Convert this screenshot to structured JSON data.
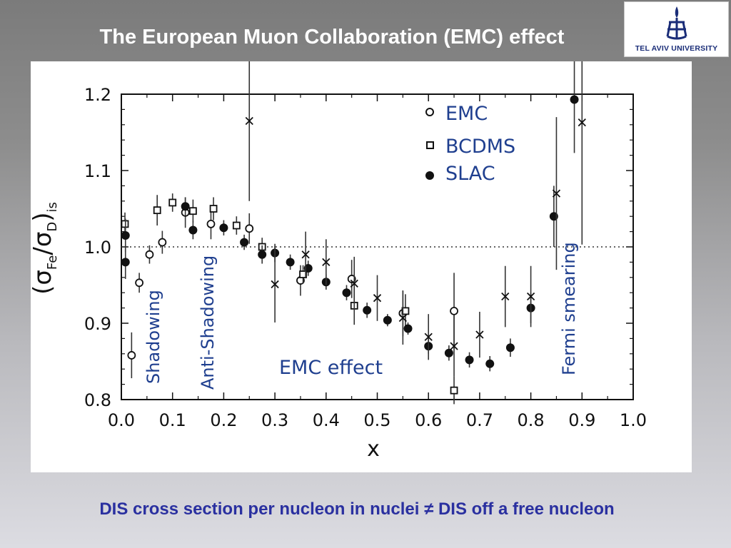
{
  "slide": {
    "title": "The European  Muon Collaboration (EMC) effect",
    "footer": "DIS cross section per nucleon in nuclei  ≠ DIS off a free nucleon",
    "logo_text": "TEL AVIV UNIVERSITY"
  },
  "colors": {
    "title": "#ffffff",
    "footer": "#2a30a0",
    "region_label": "#1f3f8f",
    "legend_text": "#1f3f8f",
    "logo": "#1a2d78"
  },
  "chart_data": {
    "type": "scatter",
    "xlabel": "x",
    "ylabel_base": "(σ",
    "ylabel_sub1": "Fe",
    "ylabel_mid": "/σ",
    "ylabel_sub2": "D",
    "ylabel_close": ")",
    "ylabel_sub3": "is",
    "xlim": [
      0.0,
      1.0
    ],
    "ylim": [
      0.8,
      1.2
    ],
    "x_ticks": [
      "0.0",
      "0.1",
      "0.2",
      "0.3",
      "0.4",
      "0.5",
      "0.6",
      "0.7",
      "0.8",
      "0.9",
      "1.0"
    ],
    "y_ticks": [
      "0.8",
      "0.9",
      "1.0",
      "1.1",
      "1.2"
    ],
    "reference_line": 1.0,
    "legend_position": "top-right",
    "region_labels": [
      "Shadowing",
      "Anti-Shadowing",
      "EMC effect",
      "Fermi smearing"
    ],
    "series": [
      {
        "name": "EMC",
        "marker": "open-circle",
        "points": [
          {
            "x": 0.02,
            "y": 0.858,
            "err": 0.03
          },
          {
            "x": 0.035,
            "y": 0.953,
            "err": 0.013
          },
          {
            "x": 0.055,
            "y": 0.99,
            "err": 0.012
          },
          {
            "x": 0.08,
            "y": 1.006,
            "err": 0.015
          },
          {
            "x": 0.125,
            "y": 1.045,
            "err": 0.02
          },
          {
            "x": 0.175,
            "y": 1.03,
            "err": 0.02
          },
          {
            "x": 0.25,
            "y": 1.024,
            "err": 0.02
          },
          {
            "x": 0.35,
            "y": 0.956,
            "err": 0.02
          },
          {
            "x": 0.45,
            "y": 0.958,
            "err": 0.025
          },
          {
            "x": 0.55,
            "y": 0.913,
            "err": 0.03
          },
          {
            "x": 0.65,
            "y": 0.916,
            "err": 0.05
          }
        ]
      },
      {
        "name": "BCDMS",
        "marker": "open-square",
        "points": [
          {
            "x": 0.007,
            "y": 1.03,
            "err": 0.015
          },
          {
            "x": 0.07,
            "y": 1.048,
            "err": 0.02
          },
          {
            "x": 0.1,
            "y": 1.058,
            "err": 0.012
          },
          {
            "x": 0.14,
            "y": 1.047,
            "err": 0.015
          },
          {
            "x": 0.18,
            "y": 1.05,
            "err": 0.015
          },
          {
            "x": 0.225,
            "y": 1.028,
            "err": 0.012
          },
          {
            "x": 0.275,
            "y": 1.0,
            "err": 0.012
          },
          {
            "x": 0.355,
            "y": 0.964,
            "err": 0.012
          },
          {
            "x": 0.455,
            "y": 0.923,
            "err": 0.025
          },
          {
            "x": 0.555,
            "y": 0.916,
            "err": 0.022
          },
          {
            "x": 0.65,
            "y": 0.812,
            "err": 0.018
          }
        ]
      },
      {
        "name": "SLAC",
        "marker": "filled-circle",
        "points": [
          {
            "x": 0.008,
            "y": 1.015,
            "err": 0.022
          },
          {
            "x": 0.008,
            "y": 0.98,
            "err": 0.022
          },
          {
            "x": 0.125,
            "y": 1.053,
            "err": 0.012
          },
          {
            "x": 0.14,
            "y": 1.022,
            "err": 0.012
          },
          {
            "x": 0.2,
            "y": 1.025,
            "err": 0.01
          },
          {
            "x": 0.24,
            "y": 1.006,
            "err": 0.01
          },
          {
            "x": 0.275,
            "y": 0.99,
            "err": 0.012
          },
          {
            "x": 0.3,
            "y": 0.992,
            "err": 0.012
          },
          {
            "x": 0.33,
            "y": 0.98,
            "err": 0.01
          },
          {
            "x": 0.365,
            "y": 0.972,
            "err": 0.01
          },
          {
            "x": 0.4,
            "y": 0.954,
            "err": 0.01
          },
          {
            "x": 0.44,
            "y": 0.94,
            "err": 0.01
          },
          {
            "x": 0.48,
            "y": 0.917,
            "err": 0.01
          },
          {
            "x": 0.52,
            "y": 0.904,
            "err": 0.008
          },
          {
            "x": 0.56,
            "y": 0.893,
            "err": 0.008
          },
          {
            "x": 0.6,
            "y": 0.87,
            "err": 0.01
          },
          {
            "x": 0.64,
            "y": 0.861,
            "err": 0.01
          },
          {
            "x": 0.68,
            "y": 0.852,
            "err": 0.01
          },
          {
            "x": 0.72,
            "y": 0.847,
            "err": 0.01
          },
          {
            "x": 0.76,
            "y": 0.868,
            "err": 0.012
          },
          {
            "x": 0.8,
            "y": 0.92,
            "err": 0.02
          },
          {
            "x": 0.845,
            "y": 1.04,
            "err": 0.04
          },
          {
            "x": 0.885,
            "y": 1.193,
            "err": 0.07
          }
        ]
      },
      {
        "marker": "cross",
        "points": [
          {
            "x": 0.25,
            "y": 1.165,
            "err": 0.105
          },
          {
            "x": 0.3,
            "y": 0.951,
            "err": 0.05
          },
          {
            "x": 0.36,
            "y": 0.99,
            "err": 0.03
          },
          {
            "x": 0.4,
            "y": 0.98,
            "err": 0.03
          },
          {
            "x": 0.455,
            "y": 0.952,
            "err": 0.035
          },
          {
            "x": 0.5,
            "y": 0.933,
            "err": 0.03
          },
          {
            "x": 0.55,
            "y": 0.907,
            "err": 0.035
          },
          {
            "x": 0.6,
            "y": 0.882,
            "err": 0.03
          },
          {
            "x": 0.65,
            "y": 0.87,
            "err": 0.04
          },
          {
            "x": 0.7,
            "y": 0.885,
            "err": 0.03
          },
          {
            "x": 0.75,
            "y": 0.935,
            "err": 0.04
          },
          {
            "x": 0.8,
            "y": 0.935,
            "err": 0.04
          },
          {
            "x": 0.85,
            "y": 1.07,
            "err": 0.1
          },
          {
            "x": 0.9,
            "y": 1.163,
            "err": 0.16
          }
        ]
      }
    ]
  }
}
